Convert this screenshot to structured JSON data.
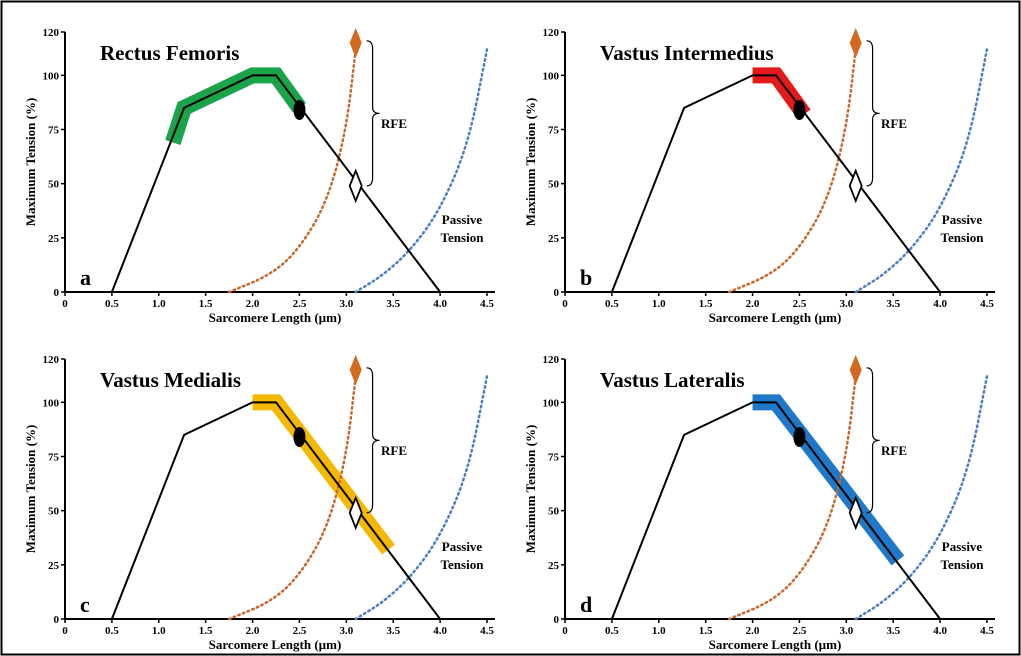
{
  "figure": {
    "colors": {
      "border": "#000000",
      "active_curve": "#000000",
      "total_tension_curve": "#c8682a",
      "passive_curve": "#4a7ec5",
      "rfe_marker": "#d2691e"
    },
    "marker_icons": {
      "operating_point": "filled-ellipse-icon",
      "passive_stretch_end": "hollow-diamond-icon",
      "total_tension_end": "filled-diamond-icon"
    }
  },
  "chart_data": [
    {
      "type": "line",
      "panel_letter": "a",
      "title": "Rectus Femoris",
      "xlabel": "Sarcomere Length (µm)",
      "ylabel": "Maximum Tension (%)",
      "xlim": [
        0,
        4.5
      ],
      "ylim": [
        0,
        120
      ],
      "xticks": [
        0,
        0.5,
        1.0,
        1.5,
        2.0,
        2.5,
        3.0,
        3.5,
        4.0,
        4.5
      ],
      "xtick_labels": [
        "0",
        "0.5",
        "1.0",
        "1.5",
        "2.0",
        "2.5",
        "3.0",
        "3.5",
        "4.0",
        "4.5"
      ],
      "yticks": [
        0,
        25,
        50,
        75,
        100,
        120
      ],
      "ytick_labels": [
        "0",
        "25",
        "50",
        "75",
        "100",
        "120"
      ],
      "highlight_color": "#1aa34a",
      "series": [
        {
          "name": "Active tension",
          "color": "#000000",
          "style": "solid",
          "x": [
            0.5,
            1.27,
            2.0,
            2.25,
            4.0
          ],
          "y": [
            0,
            85,
            100,
            100,
            0
          ]
        },
        {
          "name": "Operating range",
          "color": "#1aa34a",
          "style": "band",
          "x": [
            1.15,
            1.27,
            2.0,
            2.25,
            2.5
          ],
          "y": [
            69,
            85,
            100,
            100,
            85
          ]
        },
        {
          "name": "Total tension (active + passive)",
          "color": "#c8682a",
          "style": "dotted",
          "x": [
            1.75,
            2.2,
            2.5,
            2.8,
            3.0,
            3.1
          ],
          "y": [
            0,
            8,
            20,
            42,
            75,
            112
          ]
        },
        {
          "name": "Passive Tension",
          "color": "#4a7ec5",
          "style": "dotted",
          "x": [
            3.1,
            3.4,
            3.7,
            4.0,
            4.3,
            4.5
          ],
          "y": [
            0,
            8,
            20,
            38,
            68,
            112
          ]
        }
      ],
      "markers": [
        {
          "type": "ellipse",
          "x": 2.5,
          "y": 84,
          "color": "#000000"
        },
        {
          "type": "hollow-diamond",
          "x": 3.1,
          "y": 49,
          "color": "#000000"
        },
        {
          "type": "filled-diamond",
          "x": 3.1,
          "y": 115,
          "color": "#d2691e"
        }
      ],
      "rfe_bracket": {
        "from": 49,
        "to": 115,
        "label": "RFE"
      },
      "annotations": {
        "passive_label_line1": "Passive",
        "passive_label_line2": "Tension"
      }
    },
    {
      "type": "line",
      "panel_letter": "b",
      "title": "Vastus Intermedius",
      "xlabel": "Sarcomere Length (µm)",
      "ylabel": "Maximum Tension (%)",
      "xlim": [
        0,
        4.5
      ],
      "ylim": [
        0,
        120
      ],
      "xticks": [
        0,
        0.5,
        1.0,
        1.5,
        2.0,
        2.5,
        3.0,
        3.5,
        4.0,
        4.5
      ],
      "xtick_labels": [
        "0",
        "0.5",
        "1.0",
        "1.5",
        "2.0",
        "2.5",
        "3.0",
        "3.5",
        "4.0",
        "4.5"
      ],
      "yticks": [
        0,
        25,
        50,
        75,
        100,
        120
      ],
      "ytick_labels": [
        "0",
        "25",
        "50",
        "75",
        "100",
        "120"
      ],
      "highlight_color": "#e31a1c",
      "series": [
        {
          "name": "Active tension",
          "color": "#000000",
          "style": "solid",
          "x": [
            0.5,
            1.27,
            2.0,
            2.25,
            4.0
          ],
          "y": [
            0,
            85,
            100,
            100,
            0
          ]
        },
        {
          "name": "Operating range",
          "color": "#e31a1c",
          "style": "band",
          "x": [
            2.0,
            2.25,
            2.55
          ],
          "y": [
            100,
            100,
            82
          ]
        },
        {
          "name": "Total tension (active + passive)",
          "color": "#c8682a",
          "style": "dotted",
          "x": [
            1.75,
            2.2,
            2.5,
            2.8,
            3.0,
            3.1
          ],
          "y": [
            0,
            8,
            20,
            42,
            75,
            112
          ]
        },
        {
          "name": "Passive Tension",
          "color": "#4a7ec5",
          "style": "dotted",
          "x": [
            3.1,
            3.4,
            3.7,
            4.0,
            4.3,
            4.5
          ],
          "y": [
            0,
            8,
            20,
            38,
            68,
            112
          ]
        }
      ],
      "markers": [
        {
          "type": "ellipse",
          "x": 2.5,
          "y": 84,
          "color": "#000000"
        },
        {
          "type": "hollow-diamond",
          "x": 3.1,
          "y": 49,
          "color": "#000000"
        },
        {
          "type": "filled-diamond",
          "x": 3.1,
          "y": 115,
          "color": "#d2691e"
        }
      ],
      "rfe_bracket": {
        "from": 49,
        "to": 115,
        "label": "RFE"
      },
      "annotations": {
        "passive_label_line1": "Passive",
        "passive_label_line2": "Tension"
      }
    },
    {
      "type": "line",
      "panel_letter": "c",
      "title": "Vastus Medialis",
      "xlabel": "Sarcomere Length (µm)",
      "ylabel": "Maximum Tension (%)",
      "xlim": [
        0,
        4.5
      ],
      "ylim": [
        0,
        120
      ],
      "xticks": [
        0,
        0.5,
        1.0,
        1.5,
        2.0,
        2.5,
        3.0,
        3.5,
        4.0,
        4.5
      ],
      "xtick_labels": [
        "0",
        "0.5",
        "1.0",
        "1.5",
        "2.0",
        "2.5",
        "3.0",
        "3.5",
        "4.0",
        "4.5"
      ],
      "yticks": [
        0,
        25,
        50,
        75,
        100,
        120
      ],
      "ytick_labels": [
        "0",
        "25",
        "50",
        "75",
        "100",
        "120"
      ],
      "highlight_color": "#f5b800",
      "series": [
        {
          "name": "Active tension",
          "color": "#000000",
          "style": "solid",
          "x": [
            0.5,
            1.27,
            2.0,
            2.25,
            4.0
          ],
          "y": [
            0,
            85,
            100,
            100,
            0
          ]
        },
        {
          "name": "Operating range",
          "color": "#f5b800",
          "style": "band",
          "x": [
            2.0,
            2.25,
            3.45
          ],
          "y": [
            100,
            100,
            32
          ]
        },
        {
          "name": "Total tension (active + passive)",
          "color": "#c8682a",
          "style": "dotted",
          "x": [
            1.75,
            2.2,
            2.5,
            2.8,
            3.0,
            3.1
          ],
          "y": [
            0,
            8,
            20,
            42,
            75,
            112
          ]
        },
        {
          "name": "Passive Tension",
          "color": "#4a7ec5",
          "style": "dotted",
          "x": [
            3.1,
            3.4,
            3.7,
            4.0,
            4.3,
            4.5
          ],
          "y": [
            0,
            8,
            20,
            38,
            68,
            112
          ]
        }
      ],
      "markers": [
        {
          "type": "ellipse",
          "x": 2.5,
          "y": 84,
          "color": "#000000"
        },
        {
          "type": "hollow-diamond",
          "x": 3.1,
          "y": 49,
          "color": "#000000"
        },
        {
          "type": "filled-diamond",
          "x": 3.1,
          "y": 115,
          "color": "#d2691e"
        }
      ],
      "rfe_bracket": {
        "from": 49,
        "to": 115,
        "label": "RFE"
      },
      "annotations": {
        "passive_label_line1": "Passive",
        "passive_label_line2": "Tension"
      }
    },
    {
      "type": "line",
      "panel_letter": "d",
      "title": "Vastus Lateralis",
      "xlabel": "Sarcomere Length (µm)",
      "ylabel": "Maximum Tension (%)",
      "xlim": [
        0,
        4.5
      ],
      "ylim": [
        0,
        120
      ],
      "xticks": [
        0,
        0.5,
        1.0,
        1.5,
        2.0,
        2.5,
        3.0,
        3.5,
        4.0,
        4.5
      ],
      "xtick_labels": [
        "0",
        "0.5",
        "1.0",
        "1.5",
        "2.0",
        "2.5",
        "3.0",
        "3.5",
        "4.0",
        "4.5"
      ],
      "yticks": [
        0,
        25,
        50,
        75,
        100,
        120
      ],
      "ytick_labels": [
        "0",
        "25",
        "50",
        "75",
        "100",
        "120"
      ],
      "highlight_color": "#1f78c8",
      "series": [
        {
          "name": "Active tension",
          "color": "#000000",
          "style": "solid",
          "x": [
            0.5,
            1.27,
            2.0,
            2.25,
            4.0
          ],
          "y": [
            0,
            85,
            100,
            100,
            0
          ]
        },
        {
          "name": "Operating range",
          "color": "#1f78c8",
          "style": "band",
          "x": [
            2.0,
            2.25,
            3.55
          ],
          "y": [
            100,
            100,
            27
          ]
        },
        {
          "name": "Total tension (active + passive)",
          "color": "#c8682a",
          "style": "dotted",
          "x": [
            1.75,
            2.2,
            2.5,
            2.8,
            3.0,
            3.1
          ],
          "y": [
            0,
            8,
            20,
            42,
            75,
            112
          ]
        },
        {
          "name": "Passive Tension",
          "color": "#4a7ec5",
          "style": "dotted",
          "x": [
            3.1,
            3.4,
            3.7,
            4.0,
            4.3,
            4.5
          ],
          "y": [
            0,
            8,
            20,
            38,
            68,
            112
          ]
        }
      ],
      "markers": [
        {
          "type": "ellipse",
          "x": 2.5,
          "y": 84,
          "color": "#000000"
        },
        {
          "type": "hollow-diamond",
          "x": 3.1,
          "y": 49,
          "color": "#000000"
        },
        {
          "type": "filled-diamond",
          "x": 3.1,
          "y": 115,
          "color": "#d2691e"
        }
      ],
      "rfe_bracket": {
        "from": 49,
        "to": 115,
        "label": "RFE"
      },
      "annotations": {
        "passive_label_line1": "Passive",
        "passive_label_line2": "Tension"
      }
    }
  ]
}
